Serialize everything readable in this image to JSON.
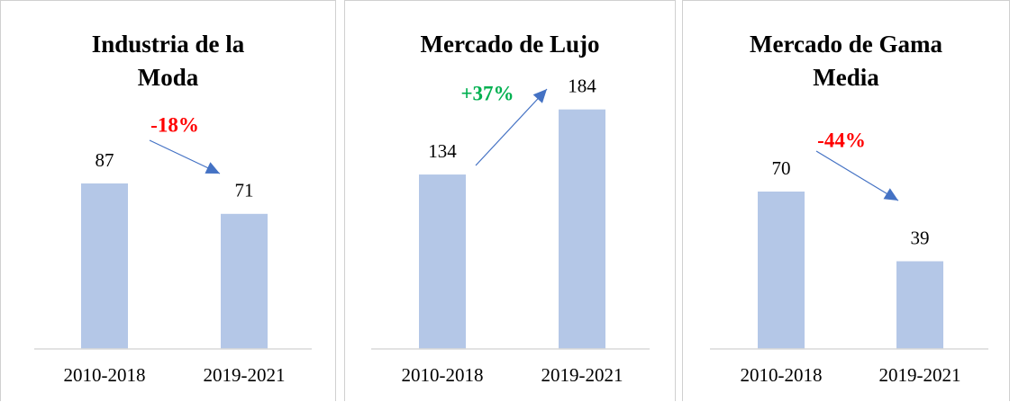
{
  "chart_data": [
    {
      "type": "bar",
      "title": "Industria de la Moda",
      "categories": [
        "2010-2018",
        "2019-2021"
      ],
      "values": [
        87,
        71
      ],
      "color": "#b4c7e7",
      "ylim": [
        0,
        130
      ],
      "annotation": {
        "text": "-18%",
        "color": "#ff0000"
      }
    },
    {
      "type": "bar",
      "title": "Mercado de Lujo",
      "categories": [
        "2010-2018",
        "2019-2021"
      ],
      "values": [
        134,
        184
      ],
      "color": "#b4c7e7",
      "ylim": [
        0,
        190
      ],
      "annotation": {
        "text": "+37%",
        "color": "#00b050"
      }
    },
    {
      "type": "bar",
      "title": "Mercado de Gama Media",
      "categories": [
        "2010-2018",
        "2019-2021"
      ],
      "values": [
        70,
        39
      ],
      "color": "#b4c7e7",
      "ylim": [
        0,
        110
      ],
      "annotation": {
        "text": "-44%",
        "color": "#ff0000"
      }
    }
  ]
}
